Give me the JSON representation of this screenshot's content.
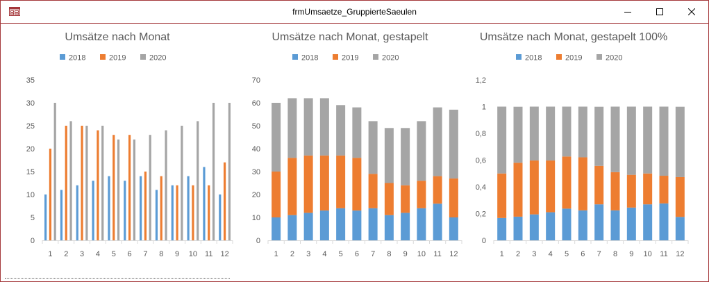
{
  "window": {
    "title": "frmUmsaetze_GruppierteSaeulen"
  },
  "icons": {
    "app": "form-icon",
    "minimize": "minimize-icon",
    "maximize": "maximize-icon",
    "close": "close-icon"
  },
  "colors": {
    "2018": "#5b9bd5",
    "2019": "#ed7d31",
    "2020": "#a5a5a5",
    "axis": "#d9d9d9",
    "text": "#595959",
    "title": "#595959"
  },
  "chart_data": [
    {
      "type": "bar",
      "mode": "clustered",
      "title": "Umsätze nach Monat",
      "categories": [
        "1",
        "2",
        "3",
        "4",
        "5",
        "6",
        "7",
        "8",
        "9",
        "10",
        "11",
        "12"
      ],
      "series": [
        {
          "name": "2018",
          "values": [
            10,
            11,
            12,
            13,
            14,
            13,
            14,
            11,
            12,
            14,
            16,
            10
          ]
        },
        {
          "name": "2019",
          "values": [
            20,
            25,
            25,
            24,
            23,
            23,
            15,
            14,
            12,
            12,
            12,
            17
          ]
        },
        {
          "name": "2020",
          "values": [
            30,
            26,
            25,
            25,
            22,
            22,
            23,
            24,
            25,
            26,
            30,
            30
          ]
        }
      ],
      "ylim": [
        0,
        35
      ],
      "yticks": [
        "0",
        "5",
        "10",
        "15",
        "20",
        "25",
        "30",
        "35"
      ],
      "legend": "top"
    },
    {
      "type": "bar",
      "mode": "stacked",
      "title": "Umsätze nach Monat, gestapelt",
      "categories": [
        "1",
        "2",
        "3",
        "4",
        "5",
        "6",
        "7",
        "8",
        "9",
        "10",
        "11",
        "12"
      ],
      "series": [
        {
          "name": "2018",
          "values": [
            10,
            11,
            12,
            13,
            14,
            13,
            14,
            11,
            12,
            14,
            16,
            10
          ]
        },
        {
          "name": "2019",
          "values": [
            20,
            25,
            25,
            24,
            23,
            23,
            15,
            14,
            12,
            12,
            12,
            17
          ]
        },
        {
          "name": "2020",
          "values": [
            30,
            26,
            25,
            25,
            22,
            22,
            23,
            24,
            25,
            26,
            30,
            30
          ]
        }
      ],
      "ylim": [
        0,
        70
      ],
      "yticks": [
        "0",
        "10",
        "20",
        "30",
        "40",
        "50",
        "60",
        "70"
      ],
      "legend": "top"
    },
    {
      "type": "bar",
      "mode": "stacked100",
      "title": "Umsätze nach Monat, gestapelt 100%",
      "categories": [
        "1",
        "2",
        "3",
        "4",
        "5",
        "6",
        "7",
        "8",
        "9",
        "10",
        "11",
        "12"
      ],
      "series": [
        {
          "name": "2018",
          "values": [
            0.167,
            0.177,
            0.194,
            0.21,
            0.237,
            0.224,
            0.269,
            0.224,
            0.245,
            0.269,
            0.276,
            0.175
          ]
        },
        {
          "name": "2019",
          "values": [
            0.333,
            0.403,
            0.403,
            0.387,
            0.39,
            0.397,
            0.288,
            0.286,
            0.245,
            0.231,
            0.207,
            0.298
          ]
        },
        {
          "name": "2020",
          "values": [
            0.5,
            0.419,
            0.403,
            0.403,
            0.373,
            0.379,
            0.442,
            0.49,
            0.51,
            0.5,
            0.517,
            0.526
          ]
        }
      ],
      "ylim": [
        0,
        1.2
      ],
      "yticks": [
        "0",
        "0,2",
        "0,4",
        "0,6",
        "0,8",
        "1",
        "1,2"
      ],
      "legend": "top"
    }
  ]
}
